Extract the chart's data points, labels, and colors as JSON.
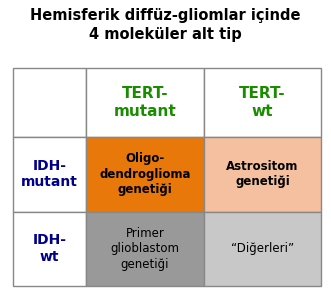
{
  "title_line1": "Hemisferik diffüz-gliomlar içinde",
  "title_line2": "4 moleküler alt tip",
  "title_fontsize": 10.5,
  "title_color": "#000000",
  "background_color": "#ffffff",
  "grid_outline_color": "#888888",
  "col_headers": [
    "TERT-\nmutant",
    "TERT-\nwt"
  ],
  "col_header_color": "#1a8c00",
  "col_header_fontsize": 11,
  "row_headers": [
    "IDH-\nmutant",
    "IDH-\nwt"
  ],
  "row_header_color": "#00008b",
  "row_header_fontsize": 10,
  "cells": [
    [
      "Oligo-\ndendroglioma\ngenetiği",
      "#e8780a"
    ],
    [
      "Astrositom\ngenetiği",
      "#f5c0a0"
    ],
    [
      "Primer\nglioblastom\ngenetiği",
      "#999999"
    ],
    [
      "“Diğerleri”",
      "#c8c8c8"
    ]
  ],
  "cell_text_color": "#000000",
  "cell_fontsize": 8.5,
  "fig_width": 3.31,
  "fig_height": 2.93,
  "dpi": 100
}
